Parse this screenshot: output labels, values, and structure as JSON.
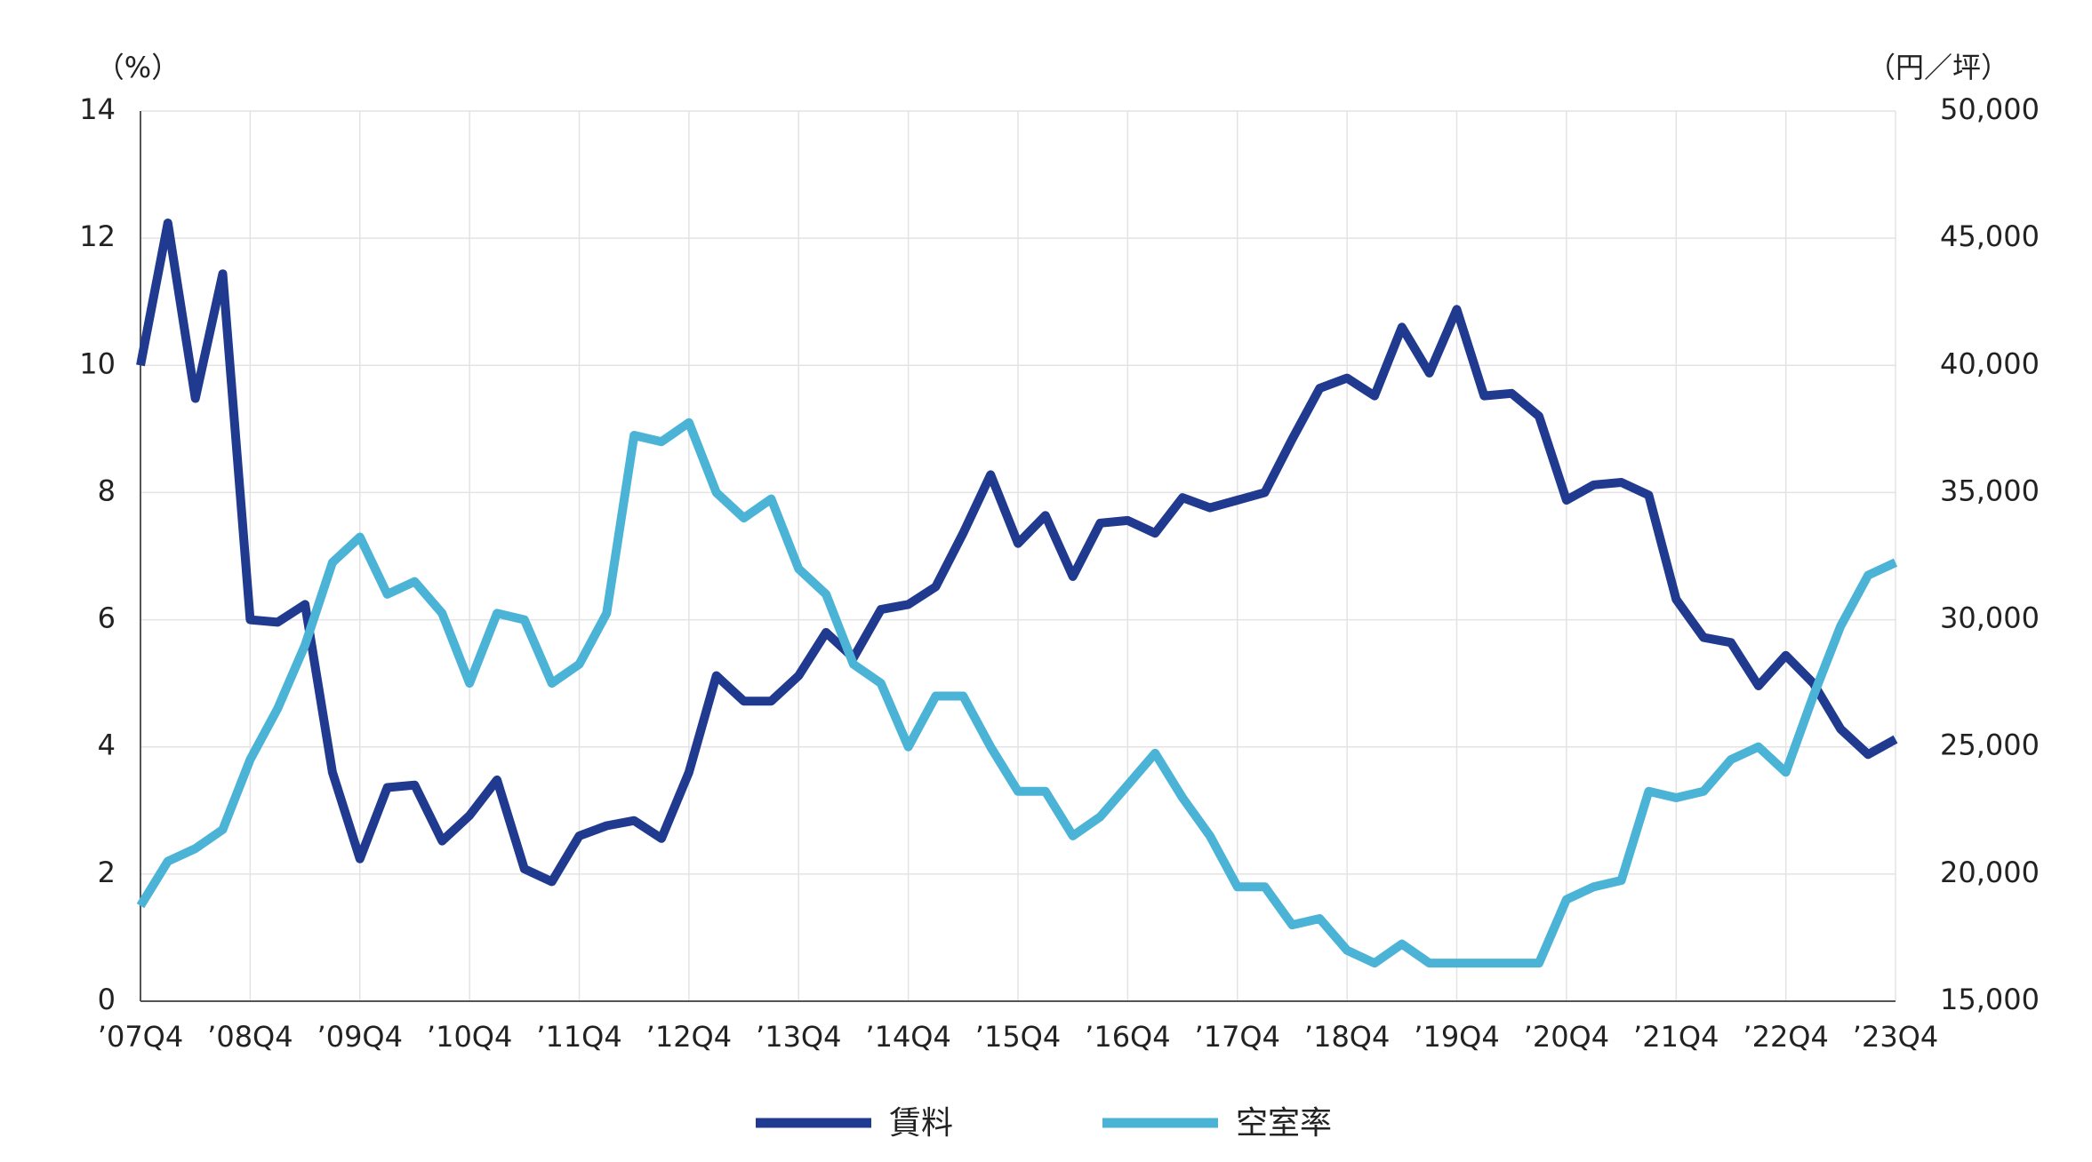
{
  "chart_data": {
    "type": "line",
    "y_unit": "（%）",
    "y2_unit": "（円／坪）",
    "categories": [
      "’07Q4",
      null,
      null,
      null,
      "’08Q4",
      null,
      null,
      null,
      "’09Q4",
      null,
      null,
      null,
      "’10Q4",
      null,
      null,
      null,
      "’11Q4",
      null,
      null,
      null,
      "’12Q4",
      null,
      null,
      null,
      "’13Q4",
      null,
      null,
      null,
      "’14Q4",
      null,
      null,
      null,
      "’15Q4",
      null,
      null,
      null,
      "’16Q4",
      null,
      null,
      null,
      "’17Q4",
      null,
      null,
      null,
      "’18Q4",
      null,
      null,
      null,
      "’19Q4",
      null,
      null,
      null,
      "’20Q4",
      null,
      null,
      null,
      "’21Q4",
      null,
      null,
      null,
      "’22Q4",
      null,
      null,
      null,
      "’23Q4"
    ],
    "series": [
      {
        "name": "賃料",
        "color": "#1f3a8f",
        "axis": "y2",
        "values": [
          40000,
          45600,
          38700,
          43600,
          30000,
          29900,
          30600,
          24000,
          20600,
          23400,
          23500,
          21300,
          22300,
          23700,
          20200,
          19700,
          21500,
          21900,
          22100,
          21400,
          24000,
          27800,
          26800,
          26800,
          27800,
          29500,
          28500,
          30400,
          30600,
          31300,
          33400,
          35700,
          33000,
          34100,
          31700,
          33800,
          33900,
          33400,
          34800,
          34400,
          34700,
          35000,
          37100,
          39100,
          39500,
          38800,
          41500,
          39700,
          42200,
          38800,
          38900,
          38000,
          34700,
          35300,
          35400,
          34900,
          30800,
          29300,
          29100,
          27400,
          28600,
          27500,
          25700,
          24700,
          25300
        ]
      },
      {
        "name": "空室率",
        "color": "#4bb3d6",
        "values": [
          1.5,
          2.2,
          2.4,
          2.7,
          3.8,
          4.6,
          5.6,
          6.9,
          7.3,
          6.4,
          6.6,
          6.1,
          5.0,
          6.1,
          6.0,
          5.0,
          5.3,
          6.1,
          8.9,
          8.8,
          9.1,
          8.0,
          7.6,
          7.9,
          6.8,
          6.4,
          5.3,
          5.0,
          4.0,
          4.8,
          4.8,
          4.0,
          3.3,
          3.3,
          2.6,
          2.9,
          3.4,
          3.9,
          3.2,
          2.6,
          1.8,
          1.8,
          1.2,
          1.3,
          0.8,
          0.6,
          0.9,
          0.6,
          0.6,
          0.6,
          0.6,
          0.6,
          1.6,
          1.8,
          1.9,
          3.3,
          3.2,
          3.3,
          3.8,
          4.0,
          3.6,
          4.8,
          5.9,
          6.7,
          6.9
        ]
      }
    ],
    "ylim": [
      0,
      14
    ],
    "yticks": [
      0,
      2,
      4,
      6,
      8,
      10,
      12,
      14
    ],
    "y2lim": [
      15000,
      50000
    ],
    "y2ticks": [
      {
        "value": 15000,
        "label": "15,000"
      },
      {
        "value": 20000,
        "label": "20,000"
      },
      {
        "value": 25000,
        "label": "25,000"
      },
      {
        "value": 30000,
        "label": "30,000"
      },
      {
        "value": 35000,
        "label": "35,000"
      },
      {
        "value": 40000,
        "label": "40,000"
      },
      {
        "value": 45000,
        "label": "45,000"
      },
      {
        "value": 50000,
        "label": "50,000"
      }
    ],
    "grid": true,
    "legend": "bottom"
  }
}
